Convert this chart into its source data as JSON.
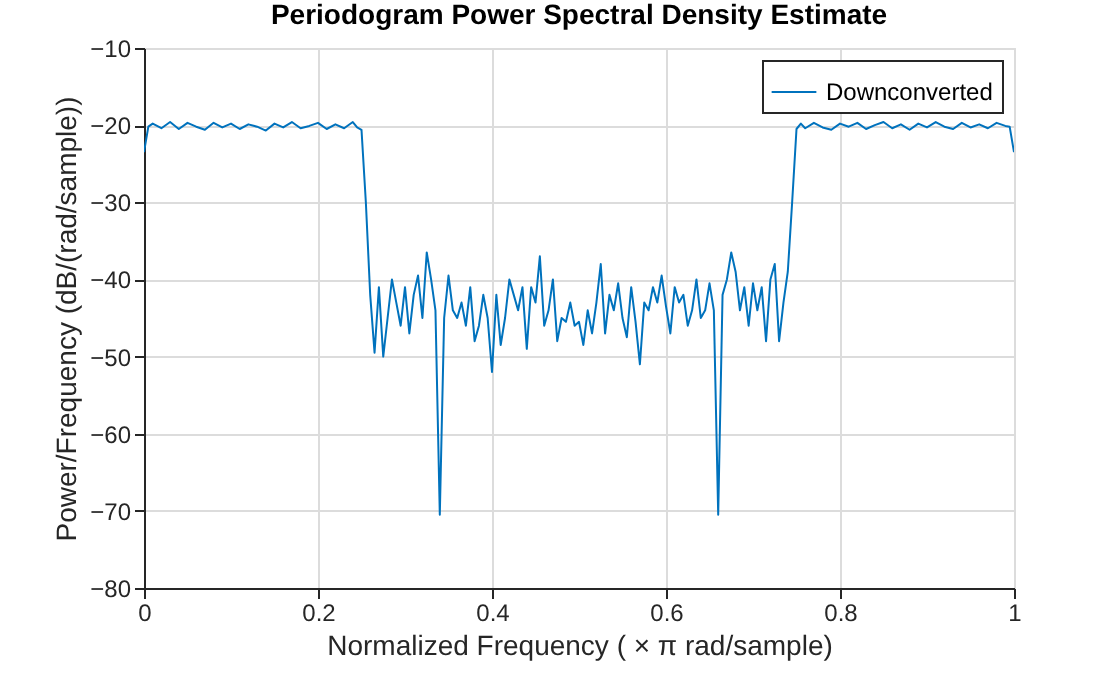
{
  "chart_data": {
    "type": "line",
    "title": "Periodogram Power Spectral Density Estimate",
    "xlabel": "Normalized Frequency ( × π rad/sample)",
    "ylabel": "Power/Frequency (dB/(rad/sample))",
    "xlim": [
      0,
      1
    ],
    "ylim": [
      -80,
      -10
    ],
    "xticks": [
      {
        "value": 0,
        "label": "0"
      },
      0.2,
      0.4,
      0.6,
      0.8,
      {
        "value": 1,
        "label": "1"
      }
    ],
    "yticks": [
      -80,
      -70,
      -60,
      -50,
      -40,
      -30,
      -20,
      -10
    ],
    "grid": true,
    "legend": "top right",
    "line_style": "solid",
    "marker": "none",
    "series": [
      {
        "name": "Downconverted",
        "color": "#0072bd",
        "x": [
          0,
          0.005,
          0.01,
          0.02,
          0.03,
          0.04,
          0.05,
          0.06,
          0.07,
          0.08,
          0.09,
          0.1,
          0.11,
          0.12,
          0.13,
          0.14,
          0.15,
          0.16,
          0.17,
          0.18,
          0.19,
          0.2,
          0.21,
          0.22,
          0.23,
          0.24,
          0.245,
          0.25,
          0.255,
          0.26,
          0.265,
          0.27,
          0.275,
          0.28,
          0.285,
          0.29,
          0.295,
          0.3,
          0.305,
          0.31,
          0.315,
          0.32,
          0.325,
          0.33,
          0.335,
          0.34,
          0.345,
          0.35,
          0.355,
          0.36,
          0.365,
          0.37,
          0.375,
          0.38,
          0.385,
          0.39,
          0.395,
          0.4,
          0.405,
          0.41,
          0.415,
          0.42,
          0.425,
          0.43,
          0.435,
          0.44,
          0.445,
          0.45,
          0.455,
          0.46,
          0.465,
          0.47,
          0.475,
          0.48,
          0.485,
          0.49,
          0.495,
          0.5,
          0.505,
          0.51,
          0.515,
          0.52,
          0.525,
          0.53,
          0.535,
          0.54,
          0.545,
          0.55,
          0.555,
          0.56,
          0.565,
          0.57,
          0.575,
          0.58,
          0.585,
          0.59,
          0.595,
          0.6,
          0.605,
          0.61,
          0.615,
          0.62,
          0.625,
          0.63,
          0.635,
          0.64,
          0.645,
          0.65,
          0.655,
          0.66,
          0.665,
          0.67,
          0.675,
          0.68,
          0.685,
          0.69,
          0.695,
          0.7,
          0.705,
          0.71,
          0.715,
          0.72,
          0.725,
          0.73,
          0.735,
          0.74,
          0.745,
          0.75,
          0.755,
          0.76,
          0.77,
          0.78,
          0.79,
          0.8,
          0.81,
          0.82,
          0.83,
          0.84,
          0.85,
          0.86,
          0.87,
          0.88,
          0.89,
          0.9,
          0.91,
          0.92,
          0.93,
          0.94,
          0.95,
          0.96,
          0.97,
          0.98,
          0.99,
          0.995,
          1
        ],
        "values": [
          -23.5,
          -20.2,
          -19.8,
          -20.4,
          -19.6,
          -20.5,
          -19.7,
          -20.2,
          -20.6,
          -19.7,
          -20.3,
          -19.8,
          -20.5,
          -19.9,
          -20.2,
          -20.7,
          -19.8,
          -20.3,
          -19.6,
          -20.4,
          -20.1,
          -19.7,
          -20.5,
          -19.9,
          -20.4,
          -19.6,
          -20.3,
          -20.6,
          -30,
          -42,
          -49.5,
          -41,
          -50,
          -45,
          -40,
          -43,
          -46,
          -41,
          -47,
          -42,
          -39.5,
          -45,
          -36.5,
          -40,
          -44,
          -70.5,
          -45,
          -39.5,
          -44,
          -45,
          -43,
          -46,
          -41,
          -48,
          -46,
          -42,
          -45,
          -52,
          -42,
          -48.5,
          -45,
          -40,
          -42,
          -44,
          -41,
          -49,
          -41,
          -43,
          -37,
          -46,
          -44,
          -40,
          -48,
          -45,
          -45.5,
          -43,
          -46,
          -45.5,
          -48.5,
          -44,
          -47,
          -43,
          -38,
          -47,
          -42,
          -44,
          -40.5,
          -45,
          -47.5,
          -41,
          -45.5,
          -51,
          -43,
          -44,
          -41,
          -43,
          -39.5,
          -43.5,
          -47,
          -41,
          -43,
          -42,
          -46,
          -44,
          -40,
          -45,
          -44,
          -40.5,
          -44,
          -70.5,
          -42,
          -40,
          -36.5,
          -39,
          -44,
          -41,
          -46,
          -40.5,
          -44,
          -41,
          -48,
          -40,
          -38,
          -48,
          -43,
          -39,
          -30,
          -20.5,
          -19.8,
          -20.4,
          -19.7,
          -20.3,
          -20.6,
          -19.8,
          -20.2,
          -19.7,
          -20.5,
          -20,
          -19.6,
          -20.4,
          -19.9,
          -20.6,
          -19.8,
          -20.3,
          -19.6,
          -20.2,
          -20.5,
          -19.7,
          -20.3,
          -19.9,
          -20.4,
          -19.7,
          -20.1,
          -20.2,
          -23.5
        ]
      }
    ]
  }
}
